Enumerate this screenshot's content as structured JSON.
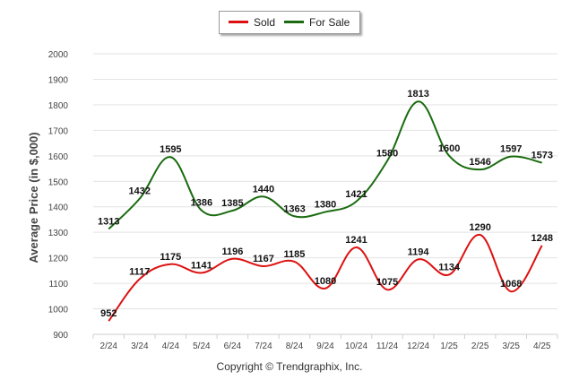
{
  "chart_data": {
    "type": "line",
    "title": "",
    "xlabel": "",
    "ylabel": "Average Price (in $,000)",
    "categories": [
      "2/24",
      "3/24",
      "4/24",
      "5/24",
      "6/24",
      "7/24",
      "8/24",
      "9/24",
      "10/24",
      "11/24",
      "12/24",
      "1/25",
      "2/25",
      "3/25",
      "4/25"
    ],
    "ylim": [
      900,
      2000
    ],
    "yticks": [
      900,
      1000,
      1100,
      1200,
      1300,
      1400,
      1500,
      1600,
      1700,
      1800,
      1900,
      2000
    ],
    "grid": true,
    "legend_position": "top-center",
    "series": [
      {
        "name": "Sold",
        "color": "#dd1111",
        "values": [
          952,
          1117,
          1175,
          1141,
          1196,
          1167,
          1185,
          1080,
          1241,
          1075,
          1194,
          1134,
          1290,
          1068,
          1248
        ]
      },
      {
        "name": "For Sale",
        "color": "#1a6b10",
        "values": [
          1313,
          1432,
          1595,
          1386,
          1385,
          1440,
          1363,
          1380,
          1421,
          1580,
          1813,
          1600,
          1546,
          1597,
          1573
        ]
      }
    ]
  },
  "legend": {
    "sold_label": "Sold",
    "for_sale_label": "For Sale"
  },
  "footer": {
    "copyright": "Copyright © Trendgraphix, Inc."
  }
}
